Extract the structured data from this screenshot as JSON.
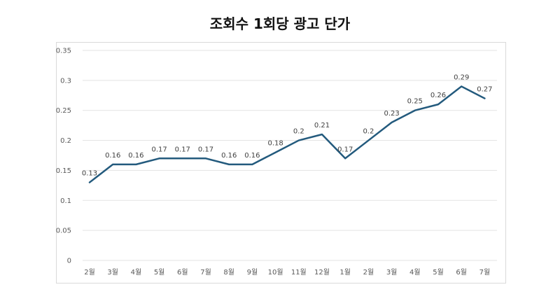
{
  "chart_data": {
    "type": "line",
    "title": "조회수 1회당 광고 단가",
    "xlabel": "",
    "ylabel": "",
    "categories": [
      "2월",
      "3월",
      "4월",
      "5월",
      "6월",
      "7월",
      "8월",
      "9월",
      "10월",
      "11월",
      "12월",
      "1월",
      "2월",
      "3월",
      "4월",
      "5월",
      "6월",
      "7월"
    ],
    "series": [
      {
        "values": [
          0.13,
          0.16,
          0.16,
          0.17,
          0.17,
          0.17,
          0.16,
          0.16,
          0.18,
          0.2,
          0.21,
          0.17,
          0.2,
          0.23,
          0.25,
          0.26,
          0.29,
          0.27
        ],
        "data_labels": [
          "0.13",
          "0.16",
          "0.16",
          "0.17",
          "0.17",
          "0.17",
          "0.16",
          "0.16",
          "0.18",
          "0.2",
          "0.21",
          "0.17",
          "0.2",
          "0.23",
          "0.25",
          "0.26",
          "0.29",
          "0.27"
        ]
      }
    ],
    "ylim": [
      0,
      0.35
    ],
    "yticks": [
      "0",
      "0.05",
      "0.1",
      "0.15",
      "0.2",
      "0.25",
      "0.3",
      "0.35"
    ],
    "grid": true,
    "legend": "none",
    "line_color": "#235a7d",
    "grid_color": "#e3e3e3"
  }
}
